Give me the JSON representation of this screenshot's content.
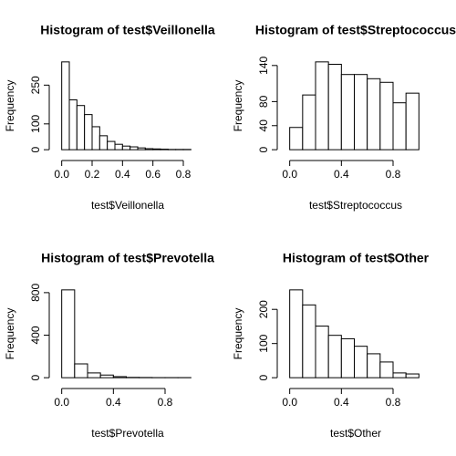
{
  "chart_data": [
    {
      "type": "histogram",
      "title": "Histogram of test$Veillonella",
      "x_label": "test$Veillonella",
      "y_label": "Frequency",
      "bins": [
        0,
        0.05,
        0.1,
        0.15,
        0.2,
        0.25,
        0.3,
        0.35,
        0.4,
        0.45,
        0.5,
        0.55,
        0.6,
        0.65,
        0.7,
        0.75,
        0.8,
        0.85
      ],
      "values": [
        340,
        193,
        171,
        136,
        89,
        54,
        32,
        21,
        14,
        11,
        7,
        4,
        3,
        2,
        1,
        1,
        1
      ],
      "xlim": [
        -0.034,
        0.884
      ],
      "ylim": [
        -13.6,
        353.6
      ],
      "xticks": [
        {
          "value": 0,
          "label": "0.0"
        },
        0.2,
        0.4,
        0.6,
        0.8
      ],
      "yticks": [
        0,
        100,
        250
      ]
    },
    {
      "type": "histogram",
      "title": "Histogram of test$Streptococcus",
      "x_label": "test$Streptococcus",
      "y_label": "Frequency",
      "bins": [
        0,
        0.1,
        0.2,
        0.3,
        0.4,
        0.5,
        0.6,
        0.7,
        0.8,
        0.9,
        1.0
      ],
      "values": [
        37,
        91,
        146,
        142,
        125,
        125,
        118,
        112,
        78,
        94
      ],
      "xlim": [
        -0.04,
        1.04
      ],
      "ylim": [
        -5.84,
        151.84
      ],
      "xticks": [
        {
          "value": 0,
          "label": "0.0"
        },
        0.4,
        0.8
      ],
      "yticks": [
        0,
        40,
        80,
        140
      ]
    },
    {
      "type": "histogram",
      "title": "Histogram of test$Prevotella",
      "x_label": "test$Prevotella",
      "y_label": "Frequency",
      "bins": [
        0,
        0.1,
        0.2,
        0.3,
        0.4,
        0.5,
        0.6,
        0.7,
        0.8,
        0.9,
        1.0
      ],
      "values": [
        826,
        130,
        45,
        25,
        10,
        3,
        2,
        1,
        1,
        1
      ],
      "xlim": [
        -0.04,
        1.04
      ],
      "ylim": [
        -33.04,
        859.04
      ],
      "xticks": [
        {
          "value": 0,
          "label": "0.0"
        },
        0.4,
        0.8
      ],
      "yticks": [
        0,
        400,
        800
      ]
    },
    {
      "type": "histogram",
      "title": "Histogram of test$Other",
      "x_label": "test$Other",
      "y_label": "Frequency",
      "bins": [
        0,
        0.1,
        0.2,
        0.3,
        0.4,
        0.5,
        0.6,
        0.7,
        0.8,
        0.9,
        1.0
      ],
      "values": [
        257,
        213,
        151,
        124,
        114,
        92,
        70,
        46,
        14,
        11
      ],
      "xlim": [
        -0.04,
        1.04
      ],
      "ylim": [
        -10.28,
        267.28
      ],
      "xticks": [
        {
          "value": 0,
          "label": "0.0"
        },
        0.4,
        0.8
      ],
      "yticks": [
        0,
        100,
        200
      ]
    }
  ]
}
